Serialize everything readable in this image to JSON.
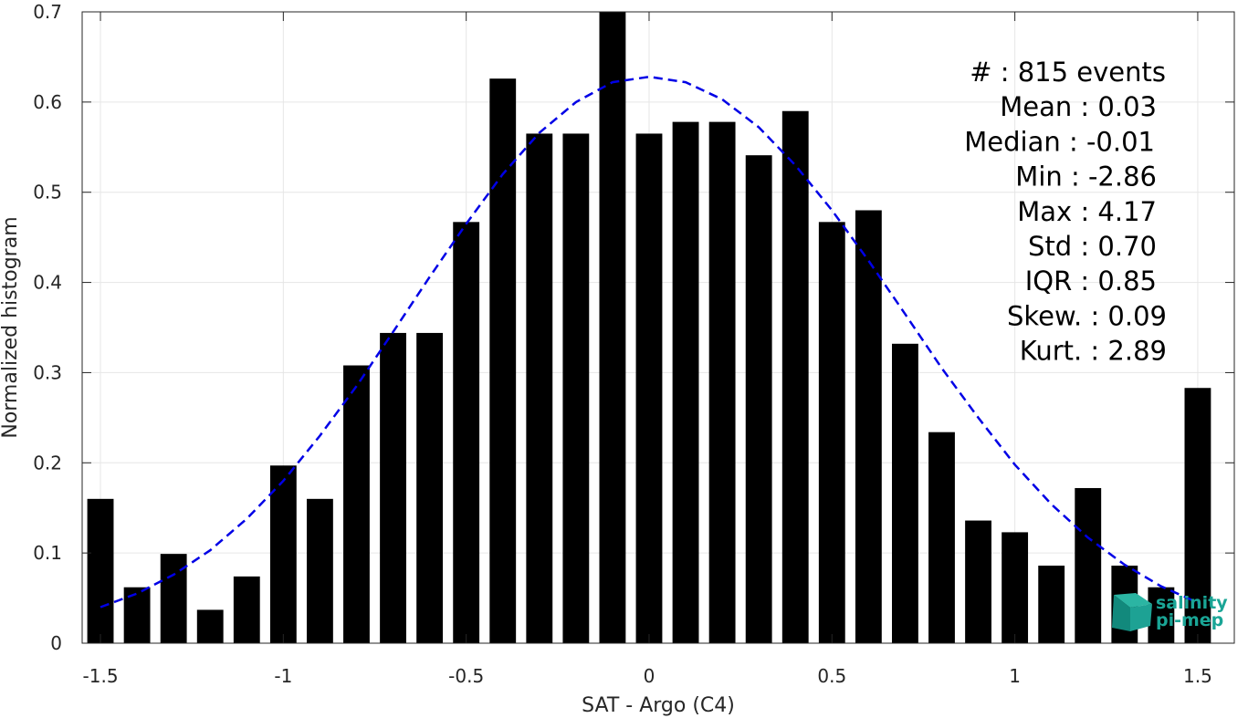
{
  "chart_data": {
    "type": "bar",
    "xlabel": "SAT - Argo (C4)",
    "ylabel": "Normalized histogram",
    "xlim": [
      -1.55,
      1.6
    ],
    "ylim": [
      0,
      0.7
    ],
    "grid": true,
    "x_ticks": [
      -1.5,
      -1,
      -0.5,
      0,
      0.5,
      1,
      1.5
    ],
    "x_tick_labels": [
      "-1.5",
      "-1",
      "-0.5",
      "0",
      "0.5",
      "1",
      "1.5"
    ],
    "y_ticks": [
      0,
      0.1,
      0.2,
      0.3,
      0.4,
      0.5,
      0.6,
      0.7
    ],
    "y_tick_labels": [
      "0",
      "0.1",
      "0.2",
      "0.3",
      "0.4",
      "0.5",
      "0.6",
      "0.7"
    ],
    "bin_width": 0.1,
    "bar_color": "#000000",
    "series": [
      {
        "x": [
          -1.5,
          -1.4,
          -1.3,
          -1.2,
          -1.1,
          -1.0,
          -0.9,
          -0.8,
          -0.7,
          -0.6,
          -0.5,
          -0.4,
          -0.3,
          -0.2,
          -0.1,
          0.0,
          0.1,
          0.2,
          0.3,
          0.4,
          0.5,
          0.6,
          0.7,
          0.8,
          0.9,
          1.0,
          1.1,
          1.2,
          1.3,
          1.4,
          1.5
        ],
        "values": [
          0.16,
          0.062,
          0.099,
          0.037,
          0.074,
          0.197,
          0.16,
          0.308,
          0.344,
          0.344,
          0.467,
          0.626,
          0.565,
          0.565,
          0.7,
          0.565,
          0.578,
          0.578,
          0.541,
          0.59,
          0.467,
          0.48,
          0.332,
          0.234,
          0.136,
          0.123,
          0.086,
          0.172,
          0.086,
          0.062,
          0.283
        ]
      }
    ],
    "fit_curve": {
      "style": "dashed",
      "color": "#0000e6",
      "x": [
        -1.5,
        -1.4,
        -1.3,
        -1.2,
        -1.1,
        -1.0,
        -0.9,
        -0.8,
        -0.7,
        -0.6,
        -0.5,
        -0.4,
        -0.3,
        -0.2,
        -0.1,
        0.0,
        0.1,
        0.2,
        0.3,
        0.4,
        0.5,
        0.6,
        0.7,
        0.8,
        0.9,
        1.0,
        1.1,
        1.2,
        1.3,
        1.4,
        1.5
      ],
      "y": [
        0.04,
        0.055,
        0.076,
        0.103,
        0.138,
        0.18,
        0.23,
        0.285,
        0.345,
        0.406,
        0.465,
        0.52,
        0.566,
        0.6,
        0.622,
        0.628,
        0.622,
        0.603,
        0.572,
        0.53,
        0.48,
        0.424,
        0.365,
        0.305,
        0.25,
        0.198,
        0.154,
        0.117,
        0.087,
        0.063,
        0.045
      ]
    },
    "annotations": [
      "#  : 815 events",
      "Mean : 0.03",
      "Median : -0.01",
      "Min : -2.86",
      "Max : 4.17",
      "Std : 0.70",
      "IQR : 0.85",
      "Skew. : 0.09",
      "Kurt. : 2.89"
    ]
  },
  "logo": {
    "line1": "salinity",
    "line2": "pi-mep",
    "color": "#1aa596"
  }
}
